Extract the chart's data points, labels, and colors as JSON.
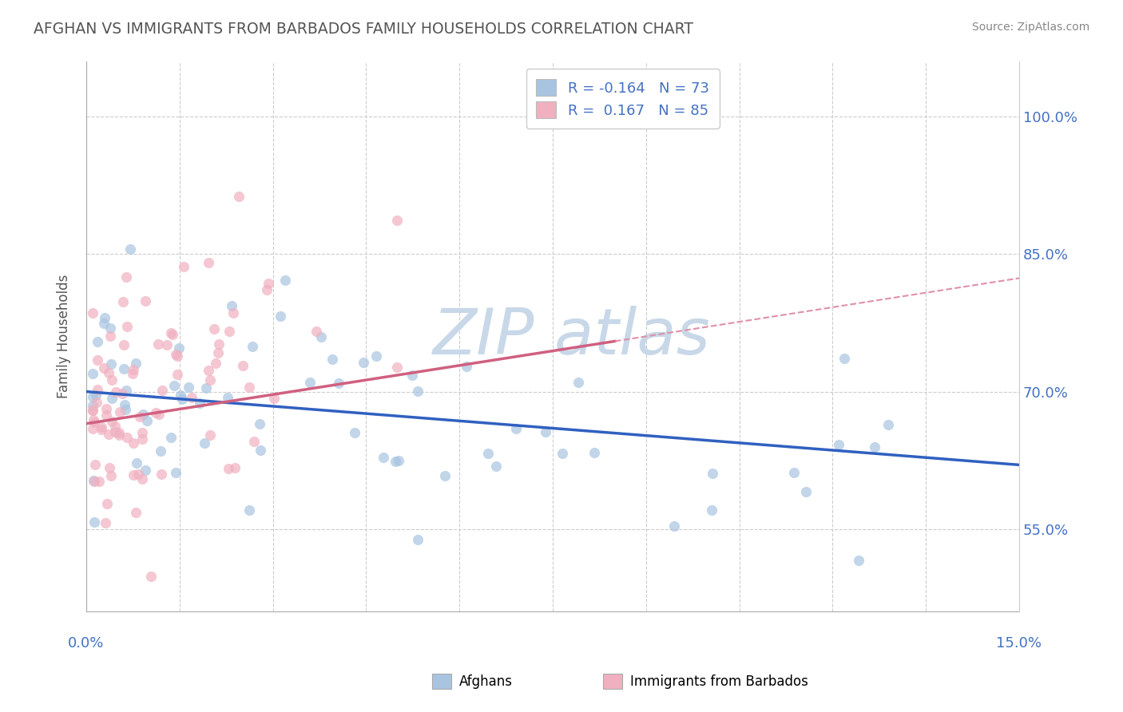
{
  "title": "AFGHAN VS IMMIGRANTS FROM BARBADOS FAMILY HOUSEHOLDS CORRELATION CHART",
  "source": "Source: ZipAtlas.com",
  "ylabel": "Family Households",
  "y_tick_labels": [
    "55.0%",
    "70.0%",
    "85.0%",
    "100.0%"
  ],
  "y_tick_values": [
    0.55,
    0.7,
    0.85,
    1.0
  ],
  "xlim": [
    0.0,
    0.15
  ],
  "ylim": [
    0.46,
    1.06
  ],
  "blue_color": "#a8c4e0",
  "pink_color": "#f0b0c0",
  "blue_line_color": "#3060c0",
  "pink_line_color": "#d06080",
  "pink_dash_color": "#e090a8",
  "watermark_color": "#c8d8e8",
  "grid_color": "#cccccc",
  "title_color": "#555555",
  "source_color": "#888888",
  "legend_text_color": "#4472c4",
  "right_tick_color": "#4472c4",
  "bottom_tick_color": "#4472c4"
}
